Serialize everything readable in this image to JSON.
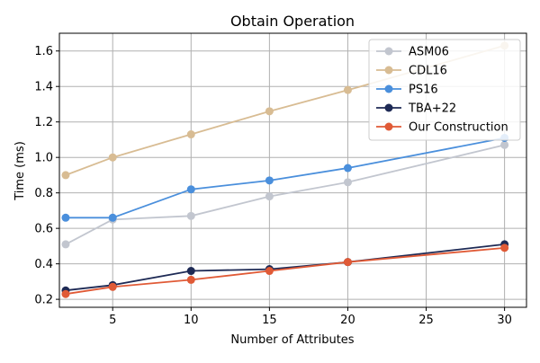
{
  "chart_data": {
    "type": "line",
    "title": "Obtain Operation",
    "xlabel": "Number of Attributes",
    "ylabel": "Time (ms)",
    "xlim": [
      1.6,
      31.4
    ],
    "ylim": [
      0.155,
      1.7
    ],
    "xticks": [
      5,
      10,
      15,
      20,
      25,
      30
    ],
    "yticks": [
      0.2,
      0.4,
      0.6,
      0.8,
      1.0,
      1.2,
      1.4,
      1.6
    ],
    "ytick_labels": [
      "0.2",
      "0.4",
      "0.6",
      "0.8",
      "1.0",
      "1.2",
      "1.4",
      "1.6"
    ],
    "grid": true,
    "legend_position": "top-right",
    "x": [
      2,
      5,
      10,
      15,
      20,
      30
    ],
    "series": [
      {
        "name": "ASM06",
        "color": "#c2c6cf",
        "values": [
          0.51,
          0.65,
          0.67,
          0.78,
          0.86,
          1.07
        ]
      },
      {
        "name": "CDL16",
        "color": "#d8bc93",
        "values": [
          0.9,
          1.0,
          1.13,
          1.26,
          1.38,
          1.63
        ]
      },
      {
        "name": "PS16",
        "color": "#4a8fdc",
        "values": [
          0.66,
          0.66,
          0.82,
          0.87,
          0.94,
          1.11
        ]
      },
      {
        "name": "TBA+22",
        "color": "#1e2a55",
        "values": [
          0.25,
          0.28,
          0.36,
          0.37,
          0.41,
          0.51
        ]
      },
      {
        "name": "Our Construction",
        "color": "#e05a36",
        "values": [
          0.23,
          0.27,
          0.31,
          0.36,
          0.41,
          0.49
        ]
      }
    ]
  }
}
